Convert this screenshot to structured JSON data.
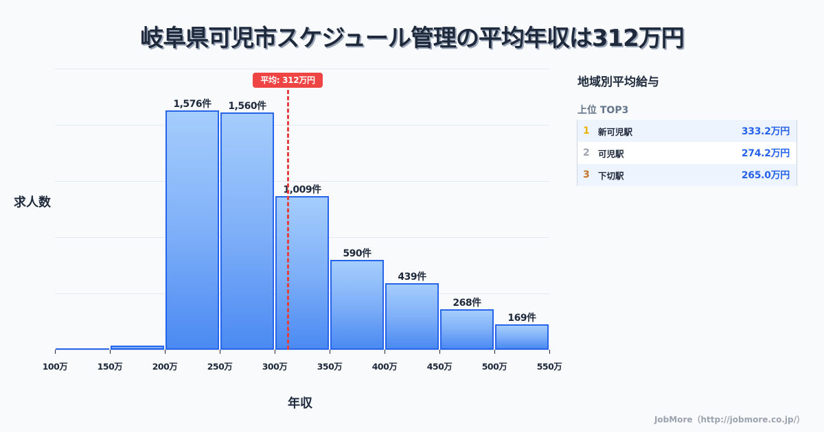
{
  "title": "岐阜県可児市スケジュール管理の平均年収は312万円",
  "chart_data": {
    "type": "bar",
    "title": "岐阜県可児市スケジュール管理の平均年収は312万円",
    "xlabel": "年収",
    "ylabel": "求人数",
    "categories": [
      "100-150万",
      "150-200万",
      "200-250万",
      "250-300万",
      "300-350万",
      "350-400万",
      "400-450万",
      "450-500万",
      "500-550万"
    ],
    "x_ticks": [
      "100万",
      "150万",
      "200万",
      "250万",
      "300万",
      "350万",
      "400万",
      "450万",
      "500万",
      "550万"
    ],
    "values": [
      3,
      27,
      1576,
      1560,
      1009,
      590,
      439,
      268,
      169
    ],
    "labels": [
      "",
      "",
      "1,576件",
      "1,560件",
      "1,009件",
      "590件",
      "439件",
      "268件",
      "169件"
    ],
    "mean": {
      "value": 312,
      "label": "平均: 312万円",
      "color": "#ef4444"
    },
    "ylim": [
      0,
      1850
    ],
    "grid": true,
    "bar_color": "#2563eb"
  },
  "axis": {
    "ylabel": "求人数",
    "xlabel": "年収"
  },
  "mean_badge": "平均: 312万円",
  "panel": {
    "title": "地域別平均給与",
    "subtitle": "上位 TOP3",
    "rows": [
      {
        "rank": "1",
        "name": "新可児駅",
        "value": "333.2万円",
        "rank_color": "#eab308"
      },
      {
        "rank": "2",
        "name": "可児駅",
        "value": "274.2万円",
        "rank_color": "#9ca3af"
      },
      {
        "rank": "3",
        "name": "下切駅",
        "value": "265.0万円",
        "rank_color": "#c2722b"
      }
    ]
  },
  "footer": "JobMore（http://jobmore.co.jp/）"
}
